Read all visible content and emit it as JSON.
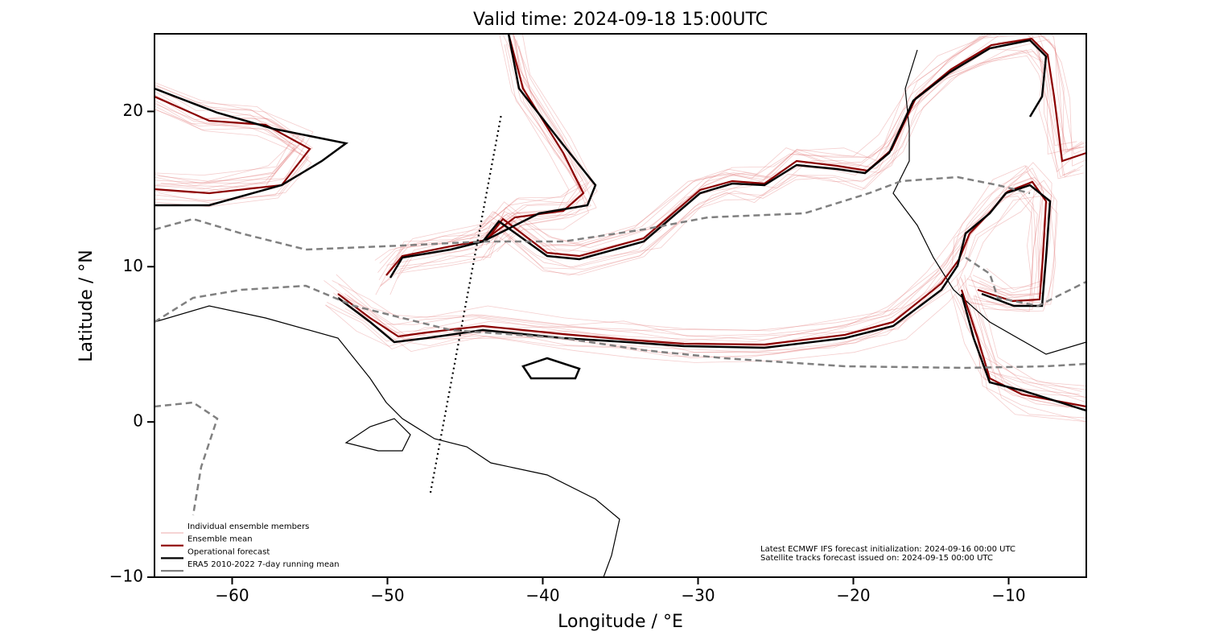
{
  "chart_data": {
    "type": "map",
    "title": "Valid time: 2024-09-18 15:00UTC",
    "x_label": "Longitude / °E",
    "y_label": "Latitude / °N",
    "xlim": [
      -65,
      -5
    ],
    "ylim": [
      -10,
      25
    ],
    "xticks": [
      {
        "value": -60,
        "label": "−60"
      },
      {
        "value": -50,
        "label": "−50"
      },
      {
        "value": -40,
        "label": "−40"
      },
      {
        "value": -30,
        "label": "−30"
      },
      {
        "value": -20,
        "label": "−20"
      },
      {
        "value": -10,
        "label": "−10"
      }
    ],
    "yticks": [
      {
        "value": -10,
        "label": "−10"
      },
      0,
      10,
      20
    ],
    "legend_location": "lower left",
    "series": [
      {
        "name": "Individual ensemble members",
        "color": "#e07070"
      },
      {
        "name": "Ensemble mean",
        "color": "#8b0000"
      },
      {
        "name": "Operational forecast",
        "color": "#000000"
      },
      {
        "name": "ERA5 2010-2022 7-day running mean",
        "color": "#808080"
      }
    ],
    "annotations": [
      "Latest ECMWF IFS forecast initialization: 2024-09-16 00:00 UTC",
      "Satellite tracks forecast issued on: 2024-09-15 00:00 UTC"
    ]
  }
}
